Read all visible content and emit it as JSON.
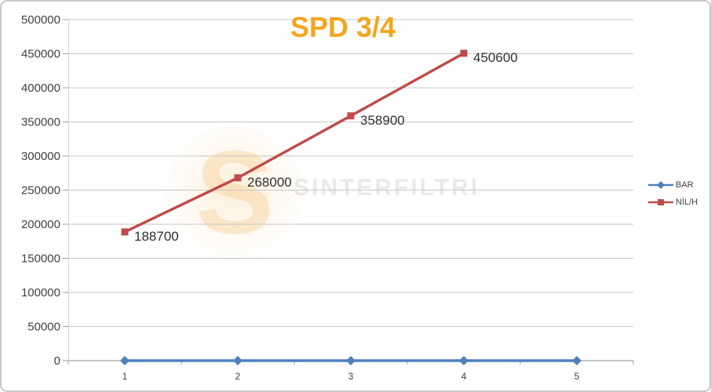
{
  "chart": {
    "title": "SPD 3/4"
  },
  "watermark": {
    "text": "SINTERFILTRI",
    "logo_letter": "S"
  },
  "chart_data": {
    "type": "line",
    "title": "SPD 3/4",
    "title_color": "#F2A71F",
    "categories": [
      "1",
      "2",
      "3",
      "4",
      "5"
    ],
    "series": [
      {
        "name": "BAR",
        "color": "#4F81BD",
        "marker": "diamond",
        "values": [
          0,
          0,
          0,
          0,
          0
        ],
        "labels": []
      },
      {
        "name": "NİL/H",
        "color": "#BE4B48",
        "marker": "square",
        "values": [
          188700,
          268000,
          358900,
          450600,
          null
        ],
        "labels": [
          "188700",
          "268000",
          "358900",
          "450600"
        ]
      }
    ],
    "ylim": [
      0,
      500000
    ],
    "ytick_step": 50000,
    "grid": "horizontal",
    "legend_position": "right",
    "xlabel": "",
    "ylabel": ""
  }
}
